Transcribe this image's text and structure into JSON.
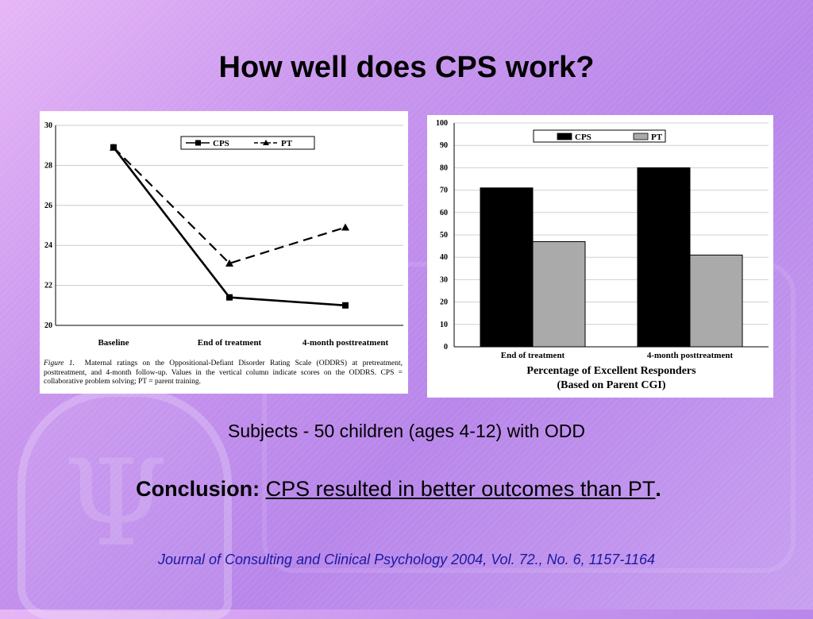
{
  "slide": {
    "title": "How well does CPS work?",
    "subjects": "Subjects - 50 children (ages 4-12) with ODD",
    "conclusion_label": "Conclusion:",
    "conclusion_text": "CPS resulted in better outcomes than PT",
    "conclusion_period": ".",
    "citation": "Journal of Consulting and Clinical Psychology 2004, Vol. 72., No. 6, 1157-1164"
  },
  "figure_caption": {
    "label": "Figure 1.",
    "text": "Maternal ratings on the Oppositional-Defiant Disorder Rating Scale (ODDRS) at pretreatment, posttreatment, and 4-month follow-up. Values in the vertical column indicate scores on the ODDRS. CPS = collaborative problem solving; PT = parent training."
  },
  "chart_data": [
    {
      "type": "line",
      "categories": [
        "Baseline",
        "End of treatment",
        "4-month posttreatment"
      ],
      "series": [
        {
          "name": "CPS",
          "values": [
            28.9,
            21.4,
            21.0
          ],
          "color": "#000000",
          "marker": "square",
          "dash": "solid"
        },
        {
          "name": "PT",
          "values": [
            28.9,
            23.1,
            24.9
          ],
          "color": "#000000",
          "marker": "triangle",
          "dash": "dashed"
        }
      ],
      "yticks": [
        20,
        22,
        24,
        26,
        28,
        30
      ],
      "ylim": [
        20,
        30
      ],
      "grid": true,
      "legend": "top-right",
      "title": "",
      "xlabel": "",
      "ylabel": ""
    },
    {
      "type": "bar",
      "categories": [
        "End of treatment",
        "4-month posttreatment"
      ],
      "series": [
        {
          "name": "CPS",
          "values": [
            71,
            80
          ],
          "color": "#000000"
        },
        {
          "name": "PT",
          "values": [
            47,
            41
          ],
          "color": "#aaaaaa"
        }
      ],
      "yticks": [
        0,
        10,
        20,
        30,
        40,
        50,
        60,
        70,
        80,
        90,
        100
      ],
      "ylim": [
        0,
        100
      ],
      "grid": true,
      "legend": "top",
      "title_line1": "Percentage of Excellent Responders",
      "title_line2": "(Based on Parent CGI)",
      "xlabel": "",
      "ylabel": ""
    }
  ]
}
